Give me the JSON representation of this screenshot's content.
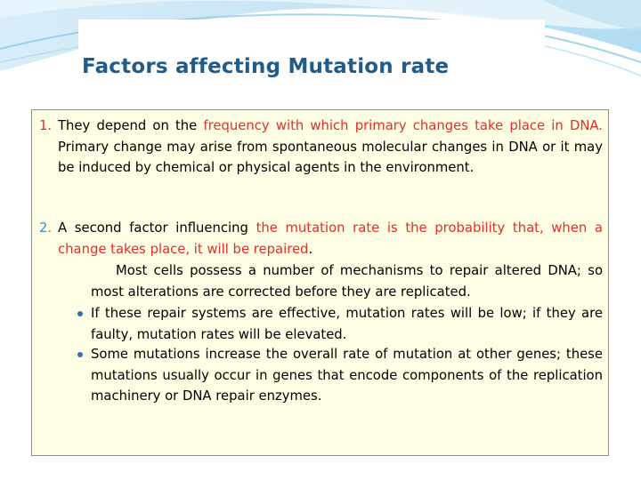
{
  "slide": {
    "title": "Factors affecting Mutation rate",
    "point1": {
      "number": "1.",
      "text_a": "They depend on the ",
      "highlight": "frequency with which primary changes take place in DNA.",
      "text_b": " Primary change may arise from spontaneous molecular changes in DNA or it may be induced by chemical or physical agents in the environment."
    },
    "point2": {
      "number": "2.",
      "text_a": "A second factor influencing ",
      "highlight": "the mutation rate is the probability that, when a change takes place, it will be repaired",
      "text_b": "."
    },
    "sub_paragraph": "Most cells possess a number of mechanisms to repair altered DNA; so most alterations are corrected before they are replicated.",
    "bullets": [
      "If these repair systems are effective, mutation rates will be low; if they are faulty, mutation rates will be elevated.",
      "Some mutations increase the overall rate of mutation at other genes; these mutations usually occur in genes that encode components of the replication machinery or DNA repair enzymes."
    ]
  },
  "colors": {
    "title": "#1f5c8c",
    "highlight": "#e0302a",
    "number2": "#3a8fd0",
    "box_fill": "#fefee4",
    "wave": "#7fc4e6"
  }
}
